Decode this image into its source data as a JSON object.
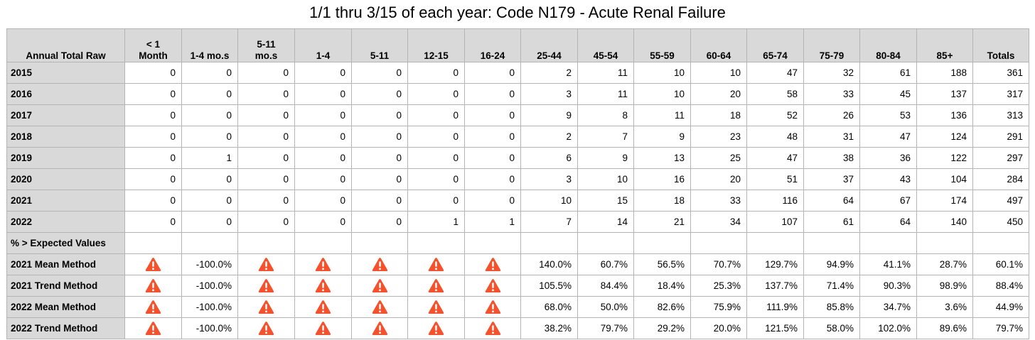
{
  "title": "1/1 thru 3/15 of each year:  Code N179 - Acute Renal Failure",
  "columns": [
    "Annual Total Raw",
    "< 1\nMonth",
    "1-4 mo.s",
    "5-11\nmo.s",
    "1-4",
    "5-11",
    "12-15",
    "16-24",
    "25-44",
    "45-54",
    "55-59",
    "60-64",
    "65-74",
    "75-79",
    "80-84",
    "85+",
    "Totals"
  ],
  "warning_icon": "warning-triangle-icon",
  "warning_color": "#f4512c",
  "rows": [
    {
      "label": "2015",
      "cells": [
        "0",
        "0",
        "0",
        "0",
        "0",
        "0",
        "0",
        "2",
        "11",
        "10",
        "10",
        "47",
        "32",
        "61",
        "188",
        "361"
      ]
    },
    {
      "label": "2016",
      "cells": [
        "0",
        "0",
        "0",
        "0",
        "0",
        "0",
        "0",
        "3",
        "11",
        "10",
        "20",
        "58",
        "33",
        "45",
        "137",
        "317"
      ]
    },
    {
      "label": "2017",
      "cells": [
        "0",
        "0",
        "0",
        "0",
        "0",
        "0",
        "0",
        "9",
        "8",
        "11",
        "18",
        "52",
        "26",
        "53",
        "136",
        "313"
      ]
    },
    {
      "label": "2018",
      "cells": [
        "0",
        "0",
        "0",
        "0",
        "0",
        "0",
        "0",
        "2",
        "7",
        "9",
        "23",
        "48",
        "31",
        "47",
        "124",
        "291"
      ]
    },
    {
      "label": "2019",
      "cells": [
        "0",
        "1",
        "0",
        "0",
        "0",
        "0",
        "0",
        "6",
        "9",
        "13",
        "25",
        "47",
        "38",
        "36",
        "122",
        "297"
      ]
    },
    {
      "label": "2020",
      "cells": [
        "0",
        "0",
        "0",
        "0",
        "0",
        "0",
        "0",
        "3",
        "10",
        "16",
        "20",
        "51",
        "37",
        "43",
        "104",
        "284"
      ]
    },
    {
      "label": "2021",
      "cells": [
        "0",
        "0",
        "0",
        "0",
        "0",
        "0",
        "0",
        "10",
        "15",
        "18",
        "33",
        "116",
        "64",
        "67",
        "174",
        "497"
      ]
    },
    {
      "label": "2022",
      "cells": [
        "0",
        "0",
        "0",
        "0",
        "0",
        "1",
        "1",
        "7",
        "14",
        "21",
        "34",
        "107",
        "61",
        "64",
        "140",
        "450"
      ]
    },
    {
      "label": "% > Expected Values",
      "cells": [
        "",
        "",
        "",
        "",
        "",
        "",
        "",
        "",
        "",
        "",
        "",
        "",
        "",
        "",
        "",
        ""
      ]
    },
    {
      "label": "2021 Mean Method",
      "cells": [
        "warn",
        "-100.0%",
        "warn",
        "warn",
        "warn",
        "warn",
        "warn",
        "140.0%",
        "60.7%",
        "56.5%",
        "70.7%",
        "129.7%",
        "94.9%",
        "41.1%",
        "28.7%",
        "60.1%"
      ]
    },
    {
      "label": "2021 Trend Method",
      "cells": [
        "warn",
        "-100.0%",
        "warn",
        "warn",
        "warn",
        "warn",
        "warn",
        "105.5%",
        "84.4%",
        "18.4%",
        "25.3%",
        "137.7%",
        "71.4%",
        "90.3%",
        "98.9%",
        "88.4%"
      ]
    },
    {
      "label": "2022 Mean Method",
      "cells": [
        "warn",
        "-100.0%",
        "warn",
        "warn",
        "warn",
        "warn",
        "warn",
        "68.0%",
        "50.0%",
        "82.6%",
        "75.9%",
        "111.9%",
        "85.8%",
        "34.7%",
        "3.6%",
        "44.9%"
      ]
    },
    {
      "label": "2022 Trend Method",
      "cells": [
        "warn",
        "-100.0%",
        "warn",
        "warn",
        "warn",
        "warn",
        "warn",
        "38.2%",
        "79.7%",
        "29.2%",
        "20.0%",
        "121.5%",
        "58.0%",
        "102.0%",
        "89.6%",
        "79.7%"
      ]
    }
  ]
}
